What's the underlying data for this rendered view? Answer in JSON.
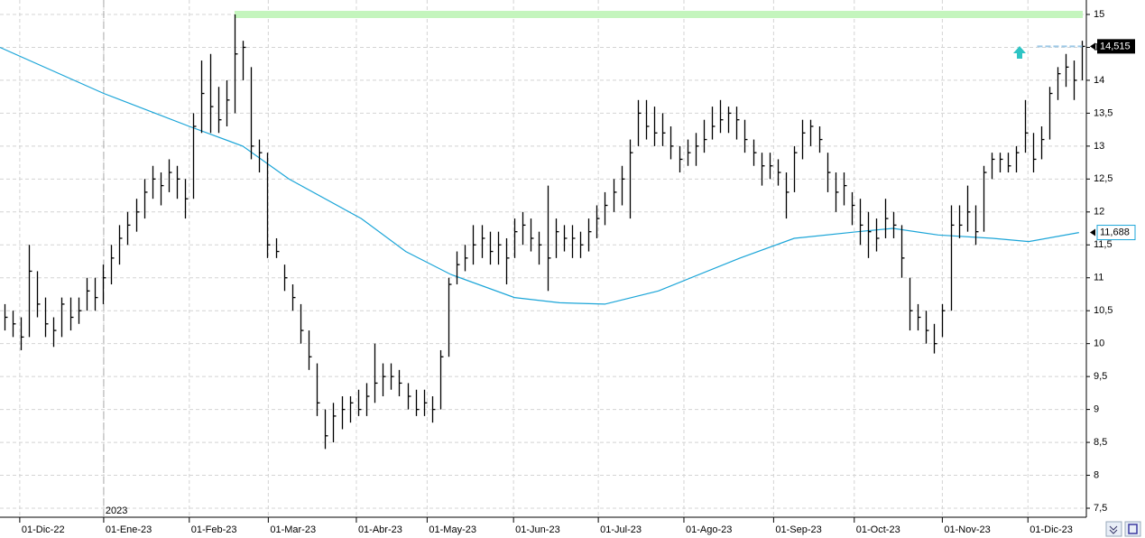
{
  "chart_data": {
    "type": "ohlc",
    "color": "#000000",
    "xlim": [
      -0.5,
      131.5
    ],
    "ylim": [
      7.5,
      15
    ],
    "grid": true,
    "yticks": [
      {
        "value": 7.5,
        "label": "7,5"
      },
      8,
      {
        "value": 8.5,
        "label": "8,5"
      },
      9,
      {
        "value": 9.5,
        "label": "9,5"
      },
      10,
      {
        "value": 10.5,
        "label": "10,5"
      },
      11,
      {
        "value": 11.5,
        "label": "11,5"
      },
      12,
      {
        "value": 12.5,
        "label": "12,5"
      },
      13,
      {
        "value": 13.5,
        "label": "13,5"
      },
      14,
      {
        "value": 14.5,
        "label": "14,5"
      },
      15
    ],
    "xticks": [
      {
        "value": 1.9,
        "label": "01-Dic-22"
      },
      {
        "value": 12.1,
        "label": "01-Ene-23"
      },
      {
        "value": 22.5,
        "label": "01-Feb-23"
      },
      {
        "value": 32.1,
        "label": "01-Mar-23"
      },
      {
        "value": 42.8,
        "label": "01-Abr-23"
      },
      {
        "value": 51.4,
        "label": "01-May-23"
      },
      {
        "value": 61.9,
        "label": "01-Jun-23"
      },
      {
        "value": 72.2,
        "label": "01-Jul-23"
      },
      {
        "value": 82.6,
        "label": "01-Ago-23"
      },
      {
        "value": 93.5,
        "label": "01-Sep-23"
      },
      {
        "value": 103.3,
        "label": "01-Oct-23"
      },
      {
        "value": 114,
        "label": "01-Nov-23"
      },
      {
        "value": 124.4,
        "label": "01-Dic-23"
      }
    ],
    "year_label": "2023",
    "high": [
      10.6,
      10.5,
      10.4,
      11.5,
      11.1,
      10.7,
      10.4,
      10.7,
      10.7,
      10.7,
      11.0,
      11.0,
      11.2,
      11.5,
      11.8,
      12.0,
      12.2,
      12.5,
      12.7,
      12.6,
      12.8,
      12.7,
      12.5,
      13.5,
      14.3,
      14.4,
      13.9,
      14.0,
      15.0,
      14.6,
      14.2,
      13.1,
      12.9,
      11.6,
      11.2,
      10.9,
      10.6,
      10.2,
      9.7,
      9.0,
      9.1,
      9.2,
      9.2,
      9.3,
      9.4,
      10.0,
      9.7,
      9.7,
      9.6,
      9.4,
      9.3,
      9.3,
      9.2,
      9.9,
      11.0,
      11.4,
      11.5,
      11.8,
      11.8,
      11.7,
      11.7,
      11.6,
      11.9,
      12.0,
      11.9,
      11.7,
      12.4,
      11.9,
      11.8,
      11.8,
      11.7,
      11.9,
      12.1,
      12.3,
      12.5,
      12.7,
      13.1,
      13.7,
      13.7,
      13.6,
      13.5,
      13.3,
      13.0,
      13.1,
      13.2,
      13.4,
      13.6,
      13.7,
      13.6,
      13.6,
      13.4,
      13.1,
      12.9,
      12.9,
      12.8,
      12.6,
      13.0,
      13.4,
      13.4,
      13.3,
      12.9,
      12.6,
      12.6,
      12.3,
      12.2,
      12.0,
      11.9,
      12.2,
      12.0,
      11.8,
      11.0,
      10.6,
      10.5,
      10.3,
      10.6,
      12.1,
      12.1,
      12.4,
      12.1,
      12.7,
      12.9,
      12.9,
      12.9,
      13.0,
      13.7,
      13.2,
      13.3,
      13.9,
      14.2,
      14.4,
      14.3,
      14.6
    ],
    "low": [
      10.2,
      10.1,
      9.9,
      10.1,
      10.4,
      10.1,
      9.95,
      10.1,
      10.2,
      10.3,
      10.5,
      10.5,
      10.6,
      10.9,
      11.2,
      11.5,
      11.7,
      11.9,
      12.2,
      12.1,
      12.3,
      12.2,
      11.9,
      12.2,
      13.2,
      13.2,
      13.2,
      13.3,
      13.5,
      14.0,
      12.8,
      12.6,
      11.3,
      11.3,
      10.8,
      10.5,
      10.0,
      9.6,
      8.9,
      8.4,
      8.5,
      8.7,
      8.8,
      8.9,
      8.9,
      9.1,
      9.2,
      9.3,
      9.2,
      9.0,
      8.9,
      8.9,
      8.8,
      9.0,
      9.8,
      10.9,
      11.1,
      11.2,
      11.3,
      11.2,
      11.2,
      10.9,
      11.3,
      11.5,
      11.4,
      11.2,
      10.8,
      11.3,
      11.4,
      11.3,
      11.3,
      11.4,
      11.6,
      11.8,
      12.0,
      12.1,
      11.9,
      13.0,
      13.1,
      13.0,
      13.0,
      12.8,
      12.6,
      12.7,
      12.7,
      12.9,
      13.1,
      13.2,
      13.2,
      13.1,
      12.9,
      12.7,
      12.4,
      12.5,
      12.4,
      11.9,
      12.3,
      12.8,
      13.0,
      12.9,
      12.3,
      12.0,
      12.1,
      11.8,
      11.5,
      11.3,
      11.4,
      11.6,
      11.6,
      11.0,
      10.2,
      10.2,
      10.0,
      9.85,
      10.1,
      10.5,
      11.6,
      11.7,
      11.5,
      11.7,
      12.5,
      12.6,
      12.6,
      12.6,
      12.9,
      12.6,
      12.8,
      13.1,
      13.7,
      13.9,
      13.7,
      14.0
    ],
    "close": [
      10.4,
      10.3,
      10.1,
      11.1,
      10.6,
      10.3,
      10.2,
      10.6,
      10.4,
      10.5,
      10.8,
      10.7,
      11.0,
      11.3,
      11.6,
      11.8,
      12.0,
      12.3,
      12.5,
      12.4,
      12.6,
      12.5,
      12.2,
      13.3,
      13.8,
      13.6,
      13.4,
      13.7,
      14.4,
      14.5,
      13.0,
      12.9,
      11.5,
      11.4,
      11.0,
      10.7,
      10.2,
      9.8,
      9.1,
      8.6,
      8.9,
      9.0,
      9.1,
      9.0,
      9.2,
      9.4,
      9.5,
      9.5,
      9.4,
      9.2,
      9.0,
      9.1,
      9.0,
      9.8,
      10.9,
      11.2,
      11.3,
      11.5,
      11.6,
      11.4,
      11.5,
      11.3,
      11.7,
      11.8,
      11.6,
      11.5,
      11.3,
      11.7,
      11.6,
      11.6,
      11.5,
      11.7,
      11.9,
      12.1,
      12.3,
      12.5,
      12.9,
      13.5,
      13.3,
      13.2,
      13.2,
      13.0,
      12.8,
      12.9,
      13.0,
      13.1,
      13.3,
      13.4,
      13.5,
      13.4,
      13.1,
      12.9,
      12.7,
      12.7,
      12.6,
      12.3,
      12.9,
      13.2,
      13.3,
      13.1,
      12.6,
      12.3,
      12.4,
      12.1,
      11.8,
      11.7,
      11.6,
      11.9,
      11.8,
      11.3,
      10.5,
      10.4,
      10.2,
      10.0,
      10.5,
      11.8,
      11.8,
      12.0,
      11.7,
      12.6,
      12.8,
      12.8,
      12.7,
      12.9,
      13.2,
      12.8,
      13.1,
      13.8,
      14.1,
      14.2,
      14.0,
      14.515
    ],
    "last_close_label": "14,515",
    "moving_average": {
      "color": "#1ba5d8",
      "x": [
        -0.5,
        12.1,
        22.5,
        29,
        34.6,
        43.4,
        48.8,
        54.3,
        62,
        67.5,
        73,
        79.5,
        89.4,
        96,
        103.7,
        108,
        113.5,
        120.1,
        124.5,
        130.6
      ],
      "values": [
        14.5,
        13.8,
        13.3,
        13.0,
        12.5,
        11.9,
        11.4,
        11.05,
        10.7,
        10.62,
        10.6,
        10.8,
        11.3,
        11.6,
        11.7,
        11.75,
        11.65,
        11.6,
        11.55,
        11.688
      ],
      "last_value_label": "11,688"
    },
    "resistance": {
      "value": 15,
      "start": 28,
      "color": "#c4f5bd"
    }
  }
}
